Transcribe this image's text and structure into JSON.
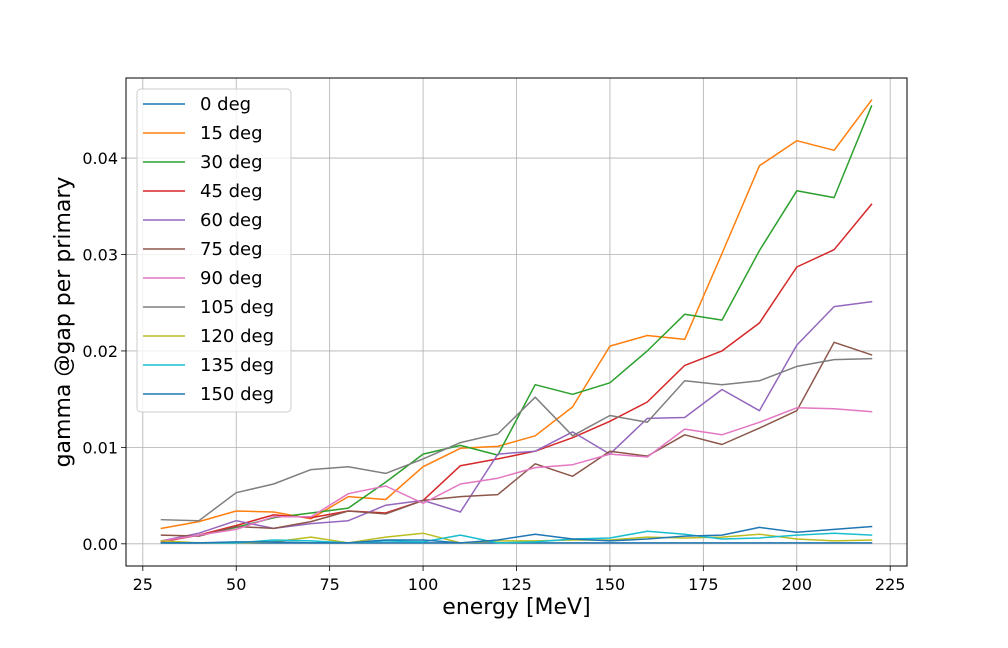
{
  "chart_data": {
    "type": "line",
    "title": "",
    "xlabel": "energy [MeV]",
    "ylabel": "gamma @gap per primary",
    "xlim": [
      20.5,
      229.5
    ],
    "ylim": [
      -0.0023,
      0.0483
    ],
    "xticks": [
      25,
      50,
      75,
      100,
      125,
      150,
      175,
      200,
      225
    ],
    "xtick_labels": [
      "25",
      "50",
      "75",
      "100",
      "125",
      "150",
      "175",
      "200",
      "225"
    ],
    "yticks": [
      0.0,
      0.01,
      0.02,
      0.03,
      0.04
    ],
    "ytick_labels": [
      "0.00",
      "0.01",
      "0.02",
      "0.03",
      "0.04"
    ],
    "grid": true,
    "legend_position": "upper-left",
    "x": [
      30,
      40,
      50,
      60,
      70,
      80,
      90,
      100,
      110,
      120,
      130,
      140,
      150,
      160,
      170,
      180,
      190,
      200,
      210,
      220
    ],
    "series": [
      {
        "name": "0 deg",
        "color": "#1f77b4",
        "values": [
          0.0001,
          0.0001,
          0.0001,
          0.0001,
          0.0001,
          0.0001,
          0.0001,
          0.0001,
          0.0001,
          0.0001,
          0.0001,
          0.0001,
          0.0001,
          0.0001,
          0.0001,
          0.0001,
          0.0001,
          0.0001,
          0.0001,
          0.0001
        ]
      },
      {
        "name": "15 deg",
        "color": "#ff7f0e",
        "values": [
          0.0016,
          0.0023,
          0.0034,
          0.0033,
          0.0026,
          0.0049,
          0.0046,
          0.008,
          0.0099,
          0.0101,
          0.0112,
          0.0142,
          0.0205,
          0.0216,
          0.0212,
          0.0301,
          0.0392,
          0.0418,
          0.0408,
          0.046
        ]
      },
      {
        "name": "30 deg",
        "color": "#2ca02c",
        "values": [
          0.0003,
          0.0009,
          0.0017,
          0.0027,
          0.0032,
          0.0037,
          0.0064,
          0.0093,
          0.0102,
          0.0092,
          0.0165,
          0.0155,
          0.0167,
          0.02,
          0.0238,
          0.0232,
          0.0304,
          0.0366,
          0.0359,
          0.0454
        ]
      },
      {
        "name": "45 deg",
        "color": "#d62728",
        "values": [
          0.0002,
          0.0009,
          0.0019,
          0.003,
          0.0027,
          0.0034,
          0.0032,
          0.0045,
          0.0081,
          0.0088,
          0.0096,
          0.011,
          0.0127,
          0.0147,
          0.0185,
          0.02,
          0.0229,
          0.0287,
          0.0305,
          0.0352
        ]
      },
      {
        "name": "60 deg",
        "color": "#9467bd",
        "values": [
          0.0003,
          0.0011,
          0.0024,
          0.0016,
          0.0021,
          0.0024,
          0.004,
          0.0045,
          0.0033,
          0.0093,
          0.0096,
          0.0116,
          0.0093,
          0.013,
          0.0131,
          0.016,
          0.0138,
          0.0206,
          0.0246,
          0.0251
        ]
      },
      {
        "name": "75 deg",
        "color": "#8c564b",
        "values": [
          0.0009,
          0.0008,
          0.0018,
          0.0016,
          0.0023,
          0.0034,
          0.0031,
          0.0045,
          0.0049,
          0.0051,
          0.0083,
          0.007,
          0.0096,
          0.0091,
          0.0113,
          0.0103,
          0.012,
          0.0138,
          0.0209,
          0.0196
        ]
      },
      {
        "name": "90 deg",
        "color": "#e377c2",
        "values": [
          0.0003,
          0.0009,
          0.0015,
          0.0028,
          0.0028,
          0.0052,
          0.006,
          0.0042,
          0.0062,
          0.0068,
          0.0079,
          0.0082,
          0.0093,
          0.009,
          0.0119,
          0.0113,
          0.0126,
          0.0141,
          0.014,
          0.0137
        ]
      },
      {
        "name": "105 deg",
        "color": "#7f7f7f",
        "values": [
          0.0025,
          0.0024,
          0.0053,
          0.0062,
          0.0077,
          0.008,
          0.0073,
          0.0088,
          0.0105,
          0.0114,
          0.0152,
          0.0112,
          0.0133,
          0.0126,
          0.0169,
          0.0165,
          0.0169,
          0.0184,
          0.0191,
          0.0192
        ]
      },
      {
        "name": "120 deg",
        "color": "#bcbd22",
        "values": [
          0.0003,
          0.0001,
          0.0001,
          0.0002,
          0.0007,
          0.0001,
          0.0007,
          0.0011,
          0.0001,
          0.0003,
          0.0003,
          0.0004,
          0.0004,
          0.0007,
          0.0006,
          0.0007,
          0.001,
          0.0005,
          0.0003,
          0.0004
        ]
      },
      {
        "name": "135 deg",
        "color": "#17becf",
        "values": [
          0.0001,
          0.0001,
          0.0001,
          0.0004,
          0.0003,
          0.0001,
          0.0003,
          0.0002,
          0.0009,
          0.0001,
          0.0002,
          0.0005,
          0.0006,
          0.0013,
          0.001,
          0.0005,
          0.0006,
          0.0009,
          0.0011,
          0.0009
        ]
      },
      {
        "name": "150 deg",
        "color": "#1f77b4",
        "values": [
          0.0001,
          0.0001,
          0.0002,
          0.0002,
          0.0001,
          0.0001,
          0.0004,
          0.0004,
          0.0001,
          0.0004,
          0.001,
          0.0005,
          0.0003,
          0.0005,
          0.0008,
          0.0009,
          0.0017,
          0.0012,
          0.0015,
          0.0018
        ]
      }
    ]
  }
}
